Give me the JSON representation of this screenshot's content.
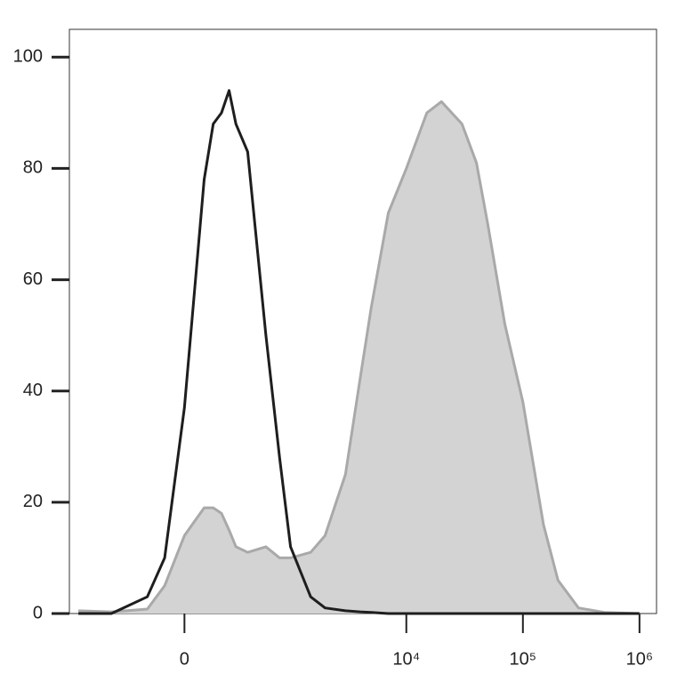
{
  "chart_data": {
    "type": "line",
    "xscale": "biexponential",
    "x": [
      -1000,
      -500,
      -200,
      -100,
      0,
      100,
      150,
      200,
      250,
      300,
      400,
      600,
      800,
      1000,
      1500,
      2000,
      3000,
      4000,
      5000,
      7000,
      10000,
      15000,
      20000,
      30000,
      40000,
      50000,
      70000,
      100000,
      150000,
      200000,
      300000,
      500000,
      1000000
    ],
    "series": [
      {
        "color": "#a9a9a9",
        "fill": "#d3d3d3",
        "values": [
          0.5,
          0.3,
          0.8,
          5,
          14,
          19,
          19,
          18,
          15,
          12,
          11,
          12,
          10,
          10,
          11,
          14,
          25,
          42,
          55,
          72,
          80,
          90,
          92,
          88,
          81,
          70,
          52,
          38,
          16,
          6,
          1,
          0.2,
          0
        ]
      },
      {
        "color": "#1e1e1e",
        "values": [
          0,
          0,
          3,
          10,
          37,
          78,
          88,
          90,
          94,
          88,
          83,
          50,
          28,
          12,
          3,
          1,
          0.5,
          0.3,
          0.2,
          0,
          0,
          0,
          0,
          0,
          0,
          0,
          0,
          0,
          0,
          0,
          0,
          0,
          0
        ]
      }
    ],
    "xlim": [
      -1200,
      1400000
    ],
    "xticks": [
      0,
      {
        "value": 10000,
        "label": "10⁴"
      },
      {
        "value": 100000,
        "label": "10⁵"
      },
      {
        "value": 1000000,
        "label": "10⁶"
      }
    ],
    "ylim": [
      0,
      105
    ],
    "yticks": [
      0,
      20,
      40,
      60,
      80,
      100
    ]
  }
}
